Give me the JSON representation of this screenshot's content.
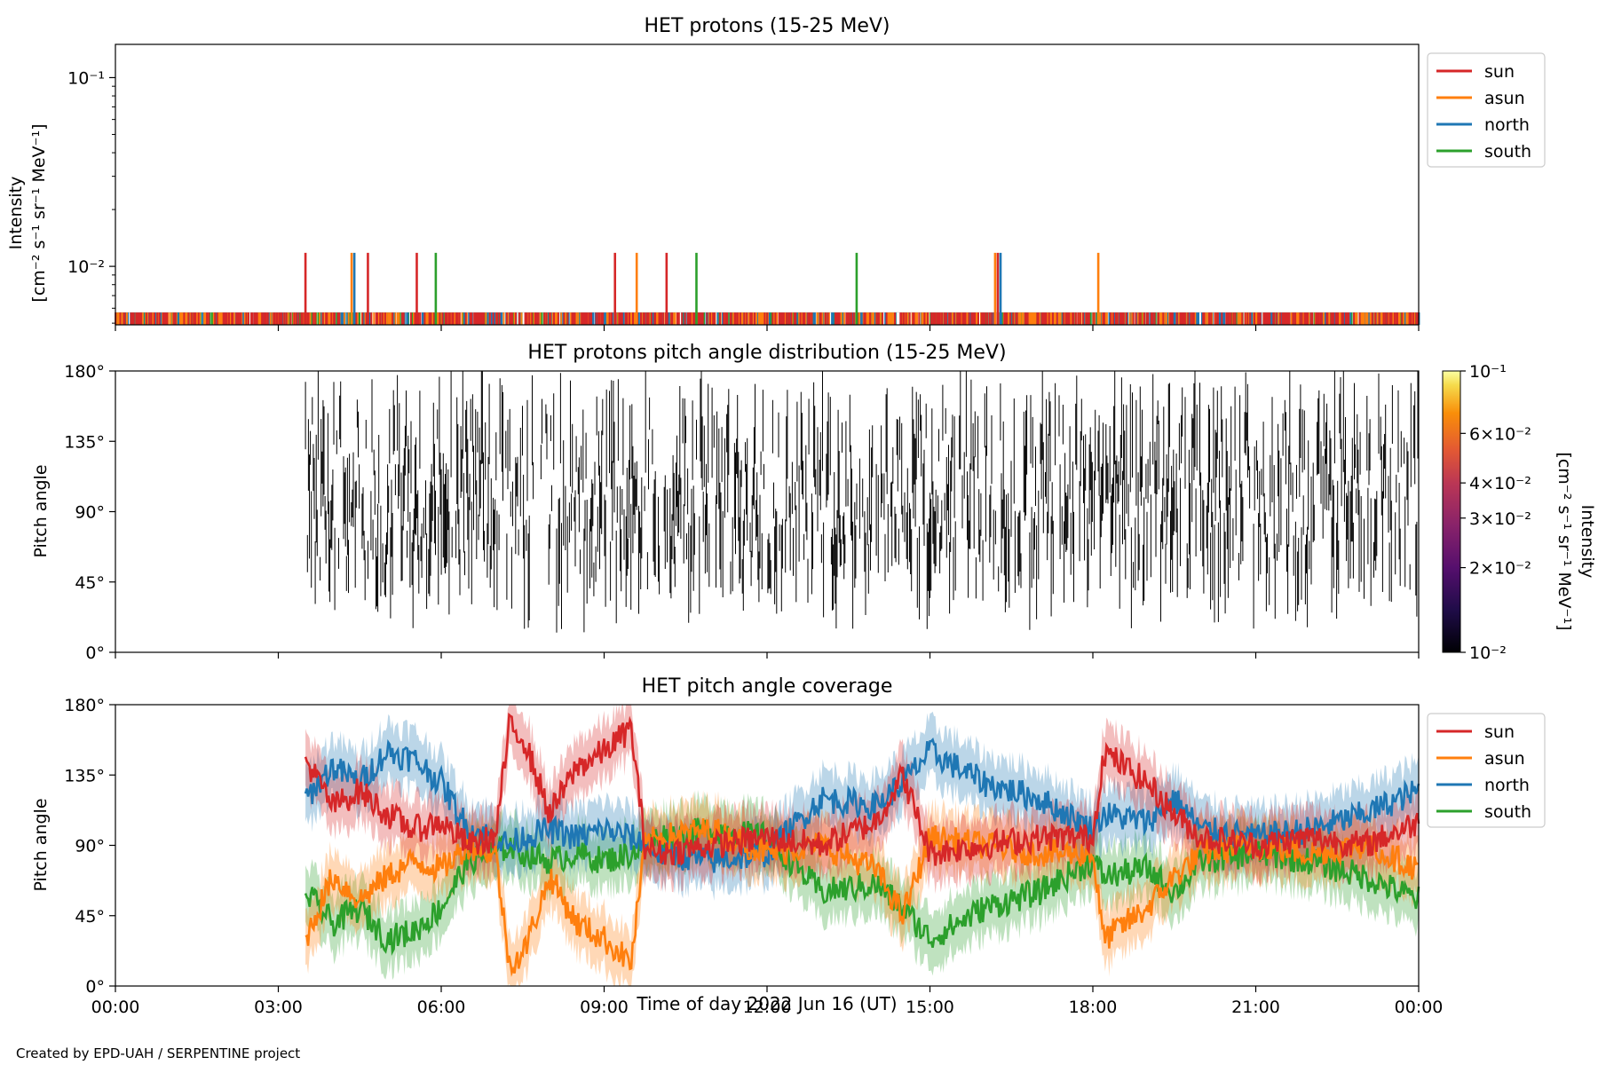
{
  "footer": {
    "credit": "Created by EPD-UAH / SERPENTINE project"
  },
  "xaxis": {
    "label": "Time of day 2022 Jun 16 (UT)",
    "ticks": [
      "00:00",
      "03:00",
      "06:00",
      "09:00",
      "12:00",
      "15:00",
      "18:00",
      "21:00",
      "00:00"
    ],
    "range_hours": [
      0,
      24
    ]
  },
  "colors": {
    "sun": "#d62728",
    "asun": "#ff7f0e",
    "north": "#1f77b4",
    "south": "#2ca02c"
  },
  "chart_data": [
    {
      "type": "line",
      "title": "HET protons (15-25 MeV)",
      "ylabel": [
        "Intensity",
        "[cm⁻² s⁻¹ sr⁻¹ MeV⁻¹]"
      ],
      "yscale": "log",
      "ylim": [
        0.0049,
        0.15
      ],
      "yticks": [
        {
          "value": 0.1,
          "label": "10⁻¹"
        },
        {
          "value": 0.01,
          "label": "10⁻²"
        }
      ],
      "legend": {
        "placement": "outside-top-right",
        "entries": [
          "sun",
          "asun",
          "north",
          "south"
        ]
      },
      "series": [
        {
          "name": "sun",
          "spike_hours": [
            3.5,
            4.65,
            5.55,
            9.2,
            10.15,
            16.25
          ],
          "spike_value": 0.0118
        },
        {
          "name": "asun",
          "spike_hours": [
            4.35,
            9.6,
            16.2,
            18.1
          ],
          "spike_value": 0.0118
        },
        {
          "name": "north",
          "spike_hours": [
            4.4,
            16.3
          ],
          "spike_value": 0.0118
        },
        {
          "name": "south",
          "spike_hours": [
            5.9,
            10.7,
            13.65
          ],
          "spike_value": 0.0118
        }
      ],
      "baseline_value": 0.0057,
      "note_baseline_hours": [
        0,
        24
      ]
    },
    {
      "type": "heatmap",
      "title": "HET protons pitch angle distribution (15-25 MeV)",
      "ylabel": "Pitch angle",
      "ylim": [
        0,
        180
      ],
      "yticks": [
        {
          "value": 0,
          "label": "0°"
        },
        {
          "value": 45,
          "label": "45°"
        },
        {
          "value": 90,
          "label": "90°"
        },
        {
          "value": 135,
          "label": "135°"
        },
        {
          "value": 180,
          "label": "180°"
        }
      ],
      "colorbar": {
        "label": [
          "Intensity",
          "[cm⁻² s⁻¹ sr⁻¹ MeV⁻¹]"
        ],
        "scale": "log",
        "range": [
          0.01,
          0.1
        ],
        "ticks": [
          {
            "value": 0.1,
            "label": "10⁻¹"
          },
          {
            "value": 0.06,
            "label": "6×10⁻²"
          },
          {
            "value": 0.04,
            "label": "4×10⁻²"
          },
          {
            "value": 0.03,
            "label": "3×10⁻²"
          },
          {
            "value": 0.02,
            "label": "2×10⁻²"
          },
          {
            "value": 0.01,
            "label": "10⁻²"
          }
        ],
        "colormap": "inferno"
      },
      "segment_time_range_hours": [
        3.5,
        24
      ]
    },
    {
      "type": "area",
      "title": "HET pitch angle coverage",
      "ylabel": "Pitch angle",
      "ylim": [
        0,
        180
      ],
      "yticks": [
        {
          "value": 0,
          "label": "0°"
        },
        {
          "value": 45,
          "label": "45°"
        },
        {
          "value": 90,
          "label": "90°"
        },
        {
          "value": 135,
          "label": "135°"
        },
        {
          "value": 180,
          "label": "180°"
        }
      ],
      "legend": {
        "placement": "outside-top-right",
        "entries": [
          "sun",
          "asun",
          "north",
          "south"
        ]
      },
      "x": [
        3.5,
        4.0,
        4.5,
        5.0,
        5.5,
        6.0,
        6.5,
        7.0,
        7.25,
        7.5,
        8.0,
        8.5,
        9.0,
        9.5,
        9.75,
        10.0,
        11.0,
        12.0,
        13.0,
        14.0,
        14.5,
        15.0,
        16.0,
        17.0,
        18.0,
        18.2,
        19.0,
        19.5,
        20.0,
        21.0,
        22.0,
        23.0,
        24.0
      ],
      "series": [
        {
          "name": "sun",
          "values": [
            145,
            115,
            125,
            110,
            100,
            105,
            90,
            95,
            165,
            160,
            110,
            140,
            150,
            165,
            90,
            85,
            90,
            95,
            90,
            105,
            135,
            85,
            90,
            95,
            95,
            150,
            130,
            110,
            95,
            90,
            95,
            90,
            105
          ]
        },
        {
          "name": "asun",
          "values": [
            30,
            70,
            55,
            70,
            80,
            75,
            90,
            85,
            15,
            20,
            70,
            40,
            30,
            15,
            90,
            95,
            100,
            85,
            90,
            75,
            45,
            95,
            90,
            85,
            85,
            30,
            50,
            70,
            85,
            90,
            85,
            90,
            75
          ]
        },
        {
          "name": "north",
          "values": [
            120,
            140,
            130,
            150,
            145,
            130,
            100,
            95,
            90,
            95,
            100,
            95,
            100,
            95,
            90,
            85,
            80,
            85,
            120,
            115,
            130,
            150,
            130,
            120,
            100,
            110,
            105,
            120,
            100,
            95,
            100,
            110,
            125
          ]
        },
        {
          "name": "south",
          "values": [
            60,
            40,
            50,
            30,
            35,
            50,
            80,
            85,
            90,
            85,
            80,
            85,
            80,
            85,
            90,
            95,
            100,
            95,
            60,
            65,
            50,
            30,
            50,
            60,
            80,
            70,
            75,
            60,
            80,
            85,
            80,
            70,
            55
          ]
        }
      ],
      "band_halfwidth_deg": 18
    }
  ]
}
